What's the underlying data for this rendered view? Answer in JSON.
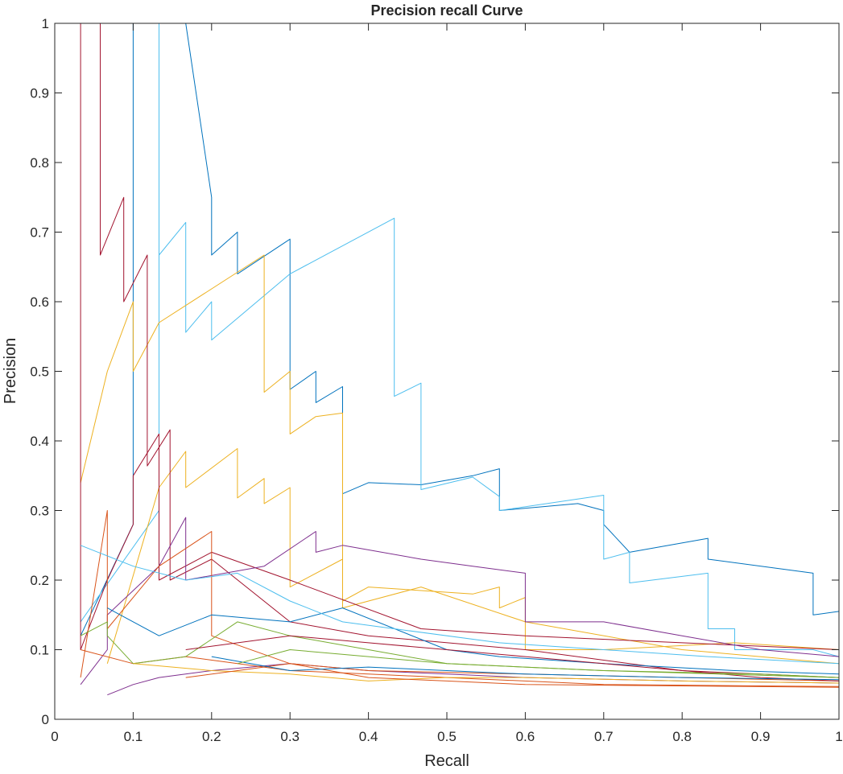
{
  "chart_data": {
    "type": "line",
    "title": "Precision recall Curve",
    "xlabel": "Recall",
    "ylabel": "Precision",
    "xlim": [
      0,
      1
    ],
    "ylim": [
      0,
      1
    ],
    "grid": false,
    "legend": "none",
    "x_ticks": [
      "0",
      "0.1",
      "0.2",
      "0.3",
      "0.4",
      "0.5",
      "0.6",
      "0.7",
      "0.8",
      "0.9",
      "1"
    ],
    "y_ticks": [
      "0",
      "0.1",
      "0.2",
      "0.3",
      "0.4",
      "0.5",
      "0.6",
      "0.7",
      "0.8",
      "0.9",
      "1"
    ],
    "series": [
      {
        "color": "#0072BD",
        "points": [
          [
            0.033,
            0.12
          ],
          [
            0.1,
            0.28
          ],
          [
            0.1,
            1.0
          ],
          [
            0.167,
            1.0
          ],
          [
            0.2,
            0.75
          ],
          [
            0.2,
            0.667
          ],
          [
            0.233,
            0.7
          ],
          [
            0.233,
            0.64
          ],
          [
            0.3,
            0.69
          ],
          [
            0.3,
            0.474
          ],
          [
            0.333,
            0.5
          ],
          [
            0.333,
            0.455
          ],
          [
            0.367,
            0.478
          ],
          [
            0.367,
            0.324
          ],
          [
            0.4,
            0.34
          ],
          [
            0.467,
            0.337
          ],
          [
            0.533,
            0.35
          ],
          [
            0.567,
            0.36
          ],
          [
            0.567,
            0.3
          ],
          [
            0.667,
            0.31
          ],
          [
            0.7,
            0.3
          ],
          [
            0.7,
            0.28
          ],
          [
            0.733,
            0.24
          ],
          [
            0.833,
            0.26
          ],
          [
            0.833,
            0.23
          ],
          [
            0.967,
            0.21
          ],
          [
            0.967,
            0.15
          ],
          [
            1.0,
            0.155
          ],
          [
            1.0,
            0.09
          ]
        ]
      },
      {
        "color": "#4DBEEE",
        "points": [
          [
            0.033,
            0.14
          ],
          [
            0.133,
            0.3
          ],
          [
            0.133,
            1.0
          ],
          [
            0.133,
            0.667
          ],
          [
            0.167,
            0.714
          ],
          [
            0.167,
            0.556
          ],
          [
            0.2,
            0.6
          ],
          [
            0.2,
            0.545
          ],
          [
            0.3,
            0.64
          ],
          [
            0.433,
            0.72
          ],
          [
            0.433,
            0.464
          ],
          [
            0.467,
            0.483
          ],
          [
            0.467,
            0.33
          ],
          [
            0.533,
            0.348
          ],
          [
            0.567,
            0.32
          ],
          [
            0.567,
            0.3
          ],
          [
            0.7,
            0.322
          ],
          [
            0.7,
            0.23
          ],
          [
            0.733,
            0.24
          ],
          [
            0.733,
            0.196
          ],
          [
            0.833,
            0.21
          ],
          [
            0.833,
            0.13
          ],
          [
            0.867,
            0.13
          ],
          [
            0.867,
            0.1
          ],
          [
            0.967,
            0.1
          ],
          [
            1.0,
            0.09
          ]
        ]
      },
      {
        "color": "#EDB120",
        "points": [
          [
            0.033,
            0.34
          ],
          [
            0.067,
            0.5
          ],
          [
            0.1,
            0.6
          ],
          [
            0.1,
            0.5
          ],
          [
            0.133,
            0.57
          ],
          [
            0.267,
            0.667
          ],
          [
            0.267,
            0.47
          ],
          [
            0.3,
            0.5
          ],
          [
            0.3,
            0.41
          ],
          [
            0.333,
            0.435
          ],
          [
            0.367,
            0.44
          ],
          [
            0.367,
            0.17
          ],
          [
            0.4,
            0.19
          ],
          [
            0.533,
            0.18
          ],
          [
            0.567,
            0.19
          ],
          [
            0.567,
            0.16
          ],
          [
            0.6,
            0.175
          ],
          [
            0.6,
            0.1
          ],
          [
            0.7,
            0.1
          ],
          [
            0.867,
            0.11
          ],
          [
            1.0,
            0.1
          ]
        ]
      },
      {
        "color": "#EDB120",
        "points": [
          [
            0.067,
            0.08
          ],
          [
            0.133,
            0.333
          ],
          [
            0.167,
            0.385
          ],
          [
            0.167,
            0.333
          ],
          [
            0.233,
            0.389
          ],
          [
            0.233,
            0.318
          ],
          [
            0.267,
            0.346
          ],
          [
            0.267,
            0.31
          ],
          [
            0.3,
            0.333
          ],
          [
            0.3,
            0.19
          ],
          [
            0.367,
            0.23
          ],
          [
            0.367,
            0.16
          ],
          [
            0.467,
            0.19
          ],
          [
            0.6,
            0.14
          ],
          [
            0.8,
            0.1
          ],
          [
            1.0,
            0.08
          ]
        ]
      },
      {
        "color": "#A2142F",
        "points": [
          [
            0.033,
            0.5
          ],
          [
            0.033,
            1.0
          ],
          [
            0.033,
            0.1
          ],
          [
            0.067,
            0.2
          ],
          [
            0.1,
            0.28
          ],
          [
            0.1,
            0.35
          ],
          [
            0.133,
            0.41
          ],
          [
            0.133,
            0.2
          ],
          [
            0.2,
            0.24
          ],
          [
            0.3,
            0.2
          ],
          [
            0.467,
            0.13
          ],
          [
            0.6,
            0.12
          ],
          [
            0.8,
            0.11
          ],
          [
            1.0,
            0.1
          ]
        ]
      },
      {
        "color": "#A2142F",
        "points": [
          [
            0.058,
            1.0
          ],
          [
            0.058,
            0.667
          ],
          [
            0.088,
            0.75
          ],
          [
            0.088,
            0.6
          ],
          [
            0.118,
            0.667
          ],
          [
            0.118,
            0.364
          ],
          [
            0.147,
            0.416
          ],
          [
            0.147,
            0.2
          ],
          [
            0.2,
            0.23
          ],
          [
            0.3,
            0.14
          ],
          [
            0.4,
            0.12
          ],
          [
            0.6,
            0.1
          ],
          [
            0.8,
            0.07
          ],
          [
            1.0,
            0.06
          ]
        ]
      },
      {
        "color": "#7E2F8E",
        "points": [
          [
            0.033,
            0.05
          ],
          [
            0.067,
            0.1
          ],
          [
            0.067,
            0.15
          ],
          [
            0.133,
            0.22
          ],
          [
            0.167,
            0.29
          ],
          [
            0.167,
            0.2
          ],
          [
            0.267,
            0.22
          ],
          [
            0.333,
            0.27
          ],
          [
            0.333,
            0.24
          ],
          [
            0.367,
            0.25
          ],
          [
            0.467,
            0.23
          ],
          [
            0.533,
            0.22
          ],
          [
            0.6,
            0.21
          ],
          [
            0.6,
            0.14
          ],
          [
            0.7,
            0.14
          ],
          [
            0.8,
            0.12
          ],
          [
            0.9,
            0.1
          ],
          [
            1.0,
            0.09
          ]
        ]
      },
      {
        "color": "#7E2F8E",
        "points": [
          [
            0.067,
            0.035
          ],
          [
            0.1,
            0.05
          ],
          [
            0.133,
            0.06
          ],
          [
            0.2,
            0.07
          ],
          [
            0.3,
            0.08
          ],
          [
            0.4,
            0.07
          ],
          [
            0.5,
            0.065
          ],
          [
            0.6,
            0.06
          ],
          [
            0.8,
            0.055
          ],
          [
            1.0,
            0.052
          ]
        ]
      },
      {
        "color": "#D95319",
        "points": [
          [
            0.033,
            0.06
          ],
          [
            0.067,
            0.3
          ],
          [
            0.067,
            0.13
          ],
          [
            0.133,
            0.22
          ],
          [
            0.2,
            0.27
          ],
          [
            0.2,
            0.12
          ],
          [
            0.3,
            0.08
          ],
          [
            0.4,
            0.07
          ],
          [
            0.6,
            0.065
          ],
          [
            0.8,
            0.06
          ],
          [
            1.0,
            0.055
          ]
        ]
      },
      {
        "color": "#D95319",
        "points": [
          [
            0.033,
            0.1
          ],
          [
            0.1,
            0.08
          ],
          [
            0.167,
            0.09
          ],
          [
            0.3,
            0.07
          ],
          [
            0.4,
            0.065
          ],
          [
            0.5,
            0.06
          ],
          [
            0.7,
            0.05
          ],
          [
            0.9,
            0.048
          ],
          [
            1.0,
            0.047
          ]
        ]
      },
      {
        "color": "#77AC30",
        "points": [
          [
            0.033,
            0.12
          ],
          [
            0.067,
            0.14
          ],
          [
            0.067,
            0.12
          ],
          [
            0.1,
            0.08
          ],
          [
            0.167,
            0.09
          ],
          [
            0.233,
            0.14
          ],
          [
            0.3,
            0.12
          ],
          [
            0.4,
            0.1
          ],
          [
            0.5,
            0.08
          ],
          [
            0.7,
            0.07
          ],
          [
            0.9,
            0.065
          ],
          [
            1.0,
            0.06
          ]
        ]
      },
      {
        "color": "#0072BD",
        "points": [
          [
            0.067,
            0.16
          ],
          [
            0.133,
            0.12
          ],
          [
            0.2,
            0.15
          ],
          [
            0.3,
            0.14
          ],
          [
            0.367,
            0.16
          ],
          [
            0.5,
            0.1
          ],
          [
            0.567,
            0.09
          ],
          [
            0.7,
            0.08
          ],
          [
            0.867,
            0.07
          ],
          [
            1.0,
            0.065
          ]
        ]
      },
      {
        "color": "#4DBEEE",
        "points": [
          [
            0.033,
            0.25
          ],
          [
            0.1,
            0.22
          ],
          [
            0.167,
            0.2
          ],
          [
            0.233,
            0.21
          ],
          [
            0.3,
            0.17
          ],
          [
            0.367,
            0.14
          ],
          [
            0.433,
            0.13
          ],
          [
            0.567,
            0.11
          ],
          [
            0.7,
            0.1
          ],
          [
            0.833,
            0.09
          ],
          [
            1.0,
            0.08
          ]
        ]
      },
      {
        "color": "#EDB120",
        "points": [
          [
            0.1,
            0.08
          ],
          [
            0.2,
            0.07
          ],
          [
            0.3,
            0.065
          ],
          [
            0.4,
            0.055
          ],
          [
            0.5,
            0.06
          ],
          [
            0.6,
            0.06
          ],
          [
            0.8,
            0.055
          ],
          [
            1.0,
            0.052
          ]
        ]
      },
      {
        "color": "#A2142F",
        "points": [
          [
            0.167,
            0.1
          ],
          [
            0.3,
            0.12
          ],
          [
            0.4,
            0.11
          ],
          [
            0.5,
            0.1
          ],
          [
            0.6,
            0.09
          ],
          [
            0.7,
            0.08
          ],
          [
            0.9,
            0.06
          ],
          [
            1.0,
            0.055
          ]
        ]
      },
      {
        "color": "#D95319",
        "points": [
          [
            0.167,
            0.06
          ],
          [
            0.3,
            0.08
          ],
          [
            0.4,
            0.06
          ],
          [
            0.5,
            0.055
          ],
          [
            0.6,
            0.05
          ],
          [
            0.8,
            0.048
          ],
          [
            1.0,
            0.046
          ]
        ]
      },
      {
        "color": "#0072BD",
        "points": [
          [
            0.2,
            0.09
          ],
          [
            0.3,
            0.07
          ],
          [
            0.4,
            0.075
          ],
          [
            0.5,
            0.07
          ],
          [
            0.6,
            0.065
          ],
          [
            0.8,
            0.06
          ],
          [
            1.0,
            0.057
          ]
        ]
      },
      {
        "color": "#77AC30",
        "points": [
          [
            0.233,
            0.08
          ],
          [
            0.3,
            0.1
          ],
          [
            0.4,
            0.09
          ],
          [
            0.5,
            0.08
          ],
          [
            0.7,
            0.07
          ],
          [
            1.0,
            0.06
          ]
        ]
      }
    ]
  }
}
